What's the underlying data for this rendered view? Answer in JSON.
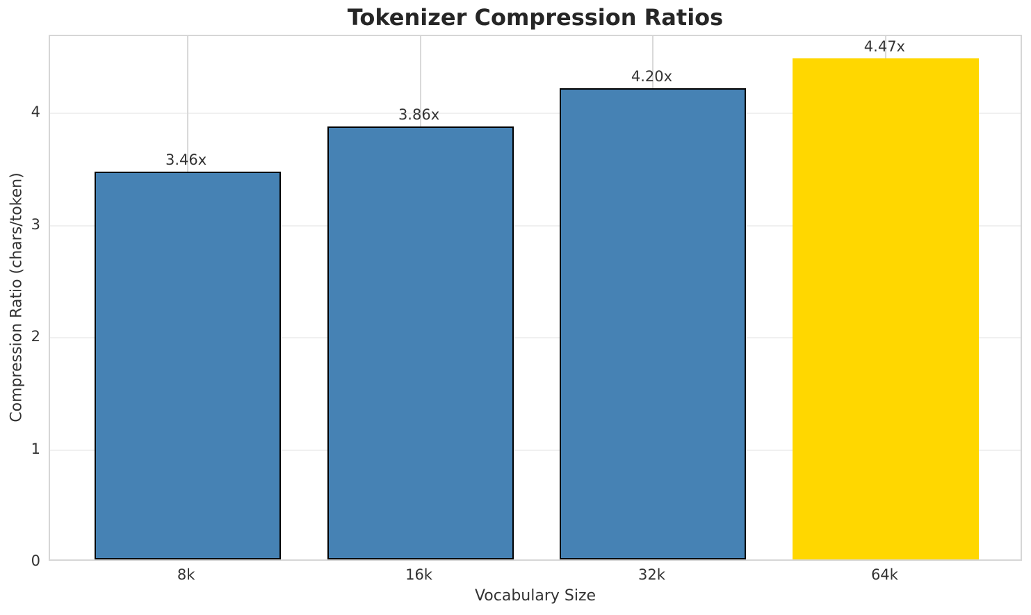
{
  "chart_data": {
    "type": "bar",
    "title": "Tokenizer Compression Ratios",
    "xlabel": "Vocabulary Size",
    "ylabel": "Compression Ratio (chars/token)",
    "categories": [
      "8k",
      "16k",
      "32k",
      "64k"
    ],
    "values": [
      3.46,
      3.86,
      4.2,
      4.47
    ],
    "bar_labels": [
      "3.46x",
      "3.86x",
      "4.20x",
      "4.47x"
    ],
    "bar_colors": [
      "#4682B4",
      "#4682B4",
      "#4682B4",
      "#FFD700"
    ],
    "bar_edge_colors": [
      "#000000",
      "#000000",
      "#000000",
      "none"
    ],
    "y_ticks": [
      0,
      1,
      2,
      3,
      4
    ],
    "ylim": [
      0,
      4.69
    ],
    "bar_width_fraction": 0.8,
    "grid": "on",
    "legend_position": "none",
    "highlighted_category": "64k"
  },
  "colors": {
    "accent_bar": "#4682B4",
    "highlight_bar": "#FFD700",
    "bar_edge": "#000000",
    "title_text": "#262626",
    "label_text": "#333333",
    "spine": "#d6d6d6",
    "grid_vertical": "#d9d9d9",
    "grid_horizontal": "#f0f0f0",
    "background": "#ffffff"
  }
}
